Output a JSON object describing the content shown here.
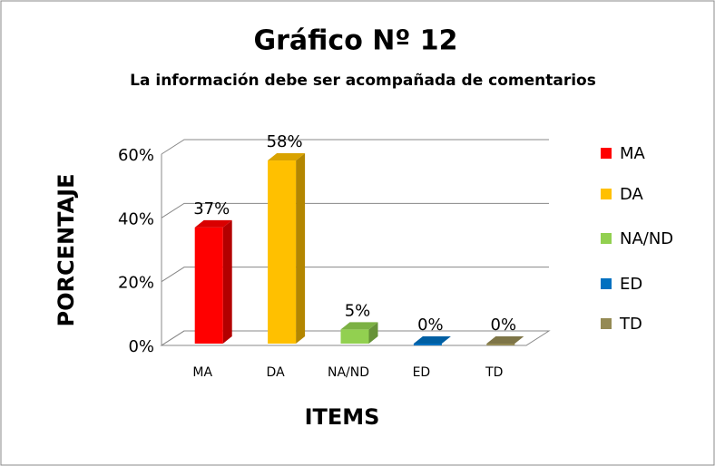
{
  "chart_data": {
    "type": "bar3d",
    "title": "Gráfico Nº 12",
    "subtitle": "La información debe ser acompañada de comentarios",
    "y_label": "PORCENTAJE",
    "x_label": "ITEMS",
    "categories": [
      "MA",
      "DA",
      "NA/ND",
      "ED",
      "TD"
    ],
    "series": [
      {
        "name": "MA",
        "color": "#ff0000"
      },
      {
        "name": "DA",
        "color": "#ffc000"
      },
      {
        "name": "NA/ND",
        "color": "#92d050"
      },
      {
        "name": "ED",
        "color": "#0070c0"
      },
      {
        "name": "TD",
        "color": "#948a54"
      }
    ],
    "values": [
      37,
      58,
      5,
      0,
      0
    ],
    "value_labels": [
      "37%",
      "58%",
      "5%",
      "0%",
      "0%"
    ],
    "ylim": [
      0,
      60
    ],
    "yticks": [
      {
        "value": 0,
        "label": "0%"
      },
      {
        "value": 20,
        "label": "20%"
      },
      {
        "value": 40,
        "label": "40%"
      },
      {
        "value": 60,
        "label": "60%"
      }
    ],
    "grid": true,
    "legend": "right"
  }
}
